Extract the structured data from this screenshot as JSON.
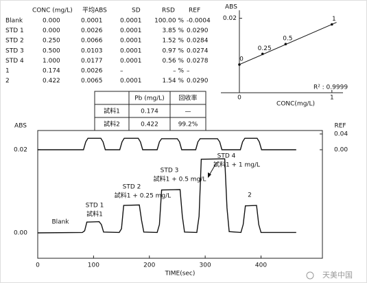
{
  "table": {
    "header": [
      "CONC (mg/L)",
      "平均ABS",
      "SD",
      "RSD",
      "REF"
    ],
    "rows": [
      [
        "Blank",
        "0.000",
        "0.0001",
        "0.0001",
        "100.00 %",
        "-0.0004"
      ],
      [
        "STD 1",
        "0.000",
        "0.0026",
        "0.0001",
        "3.85 %",
        "0.0290"
      ],
      [
        "STD 2",
        "0.250",
        "0.0066",
        "0.0001",
        "1.52 %",
        "0.0284"
      ],
      [
        "STD 3",
        "0.500",
        "0.0103",
        "0.0001",
        "0.97 %",
        "0.0274"
      ],
      [
        "STD 4",
        "1.000",
        "0.0177",
        "0.0001",
        "0.56 %",
        "0.0278"
      ],
      [
        "1",
        "0.174",
        "0.0026",
        "–",
        "– %",
        "–"
      ],
      [
        "2",
        "0.422",
        "0.0065",
        "0.0001",
        "1.54 %",
        "0.0290"
      ]
    ]
  },
  "recovery_table": {
    "header": [
      "Pb (mg/L)",
      "回收率"
    ],
    "rows": [
      [
        "試料1",
        "0.174",
        "—"
      ],
      [
        "試料2",
        "0.422",
        "99.2%"
      ]
    ]
  },
  "chart_data": [
    {
      "type": "scatter",
      "x_label": "CONC(mg/L)",
      "y_label": "ABS",
      "x": [
        0,
        0.25,
        0.5,
        1
      ],
      "values": [
        0.0026,
        0.0066,
        0.0103,
        0.0177
      ],
      "color": "#111",
      "xlim": [
        -0.2,
        1.12
      ],
      "ylim": [
        -0.008,
        0.023
      ],
      "xticks": [
        0,
        1
      ],
      "yticks": [
        0.02
      ],
      "annotation": "R² : 0.9999",
      "fit_line": true
    },
    {
      "type": "line",
      "x_label": "TIME(sec)",
      "y_label": "ABS",
      "y2_label": "REF",
      "xlim": [
        0,
        510
      ],
      "ylim": [
        -0.0061,
        0.0246
      ],
      "y2lim": [
        -0.275,
        0.0487
      ],
      "xticks": [
        0,
        100,
        200,
        300,
        400
      ],
      "yticks": [
        0.02,
        {
          "value": 0,
          "label": "0.00"
        }
      ],
      "y2ticks": [
        0.04,
        {
          "value": 0,
          "label": "0.00"
        }
      ],
      "series": [
        {
          "color": "#111",
          "x": [
            0,
            80,
            84,
            88,
            110,
            114,
            118,
            146,
            150,
            154,
            182,
            186,
            190,
            214,
            218,
            222,
            255,
            259,
            263,
            285,
            289,
            293,
            335,
            339,
            343,
            364,
            368,
            372,
            392,
            396,
            400,
            463
          ],
          "values": [
            0,
            0.0001,
            0.0005,
            0.0026,
            0.0027,
            0.002,
            0.0002,
            0.0001,
            0.001,
            0.0066,
            0.0067,
            0.003,
            0.0002,
            0.0001,
            0.002,
            0.0103,
            0.0104,
            0.004,
            0.0002,
            0.0001,
            0.004,
            0.0177,
            0.0178,
            0.006,
            0.0003,
            0.0001,
            0.002,
            0.0065,
            0.0066,
            0.002,
            0.0001,
            0.0001
          ]
        },
        {
          "color": "#111",
          "axis": "y2",
          "x": [
            0,
            82,
            86,
            90,
            113,
            117,
            121,
            147,
            151,
            155,
            180,
            184,
            188,
            214,
            218,
            222,
            250,
            254,
            258,
            283,
            287,
            291,
            322,
            326,
            330,
            363,
            367,
            371,
            393,
            397,
            401,
            463
          ],
          "values": [
            0,
            0,
            0.02,
            0.029,
            0.029,
            0.02,
            0,
            0,
            0.02,
            0.029,
            0.029,
            0.02,
            0,
            0,
            0.02,
            0.028,
            0.028,
            0.02,
            0,
            0,
            0.02,
            0.028,
            0.028,
            0.02,
            0,
            0,
            0.02,
            0.029,
            0.029,
            0.02,
            0,
            0
          ]
        }
      ],
      "annotations": [
        "Blank",
        "STD 1",
        "試料1",
        "STD 2",
        "試料1 + 0.25 mg/L",
        "STD 3",
        "試料1 + 0.5 mg/L",
        "STD 4",
        "試料1 + 1 mg/L",
        "2"
      ]
    }
  ],
  "watermark": "天美中国"
}
